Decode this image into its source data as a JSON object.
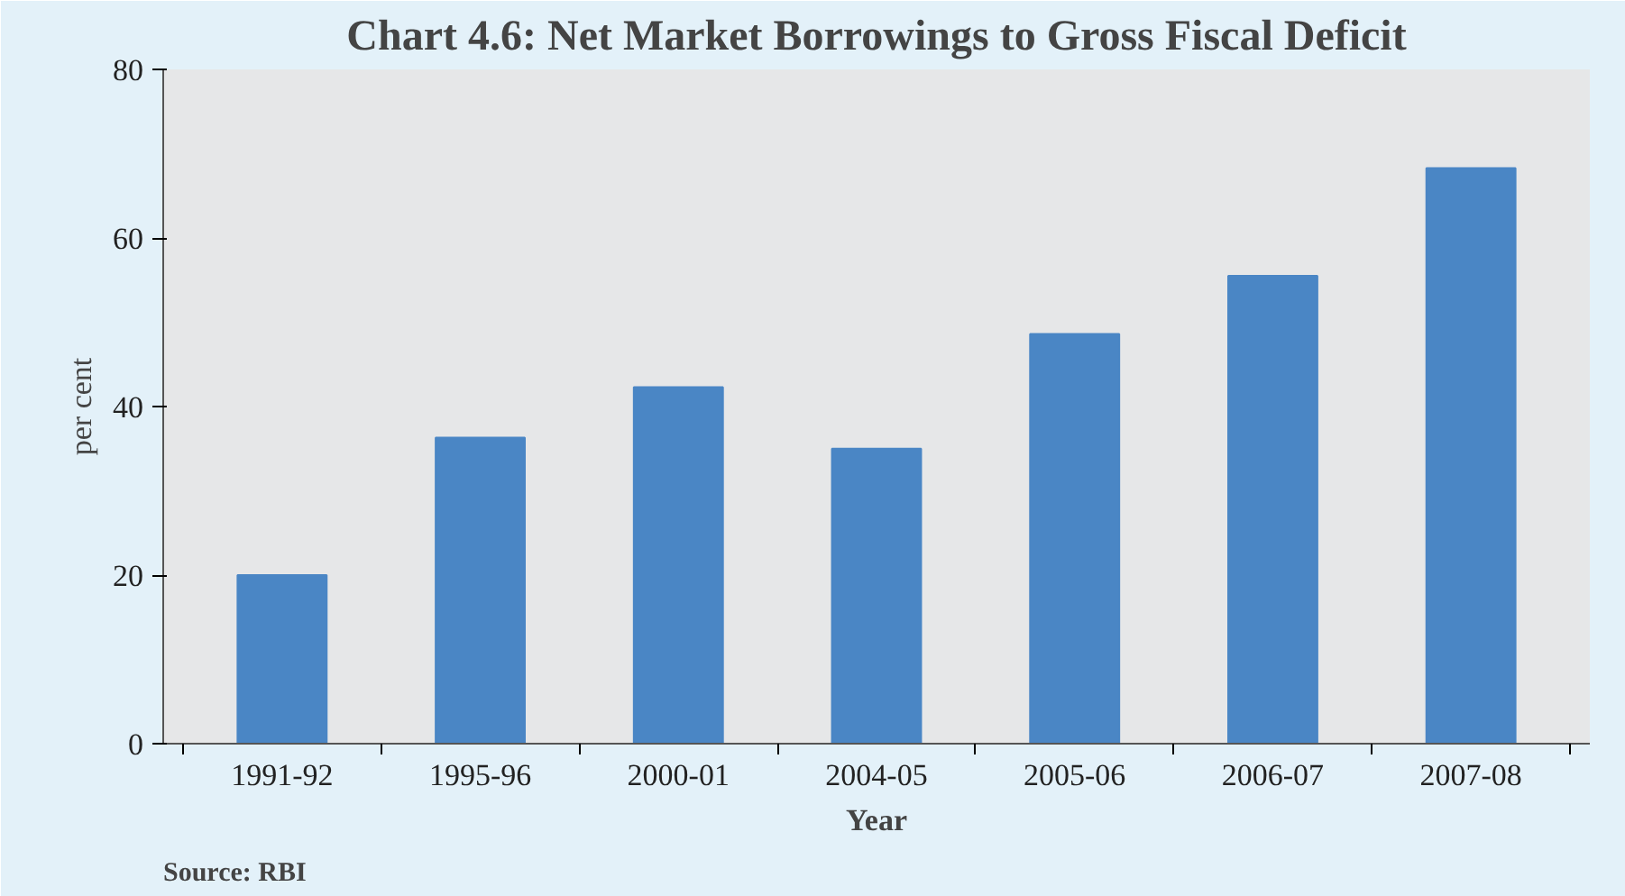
{
  "chart_data": {
    "type": "bar",
    "title": "Chart 4.6: Net Market Borrowings to Gross Fiscal Deficit",
    "xlabel": "Year",
    "ylabel": "per cent",
    "categories": [
      "1991-92",
      "1995-96",
      "2000-01",
      "2004-05",
      "2005-06",
      "2006-07",
      "2007-08"
    ],
    "values": [
      20,
      36.3,
      42.3,
      35,
      48.6,
      55.5,
      68.3
    ],
    "color": "#4a86c5",
    "ylim": [
      0,
      80
    ],
    "yticks": [
      0,
      20,
      40,
      60,
      80
    ],
    "annotations": [
      "Source: RBI"
    ]
  }
}
